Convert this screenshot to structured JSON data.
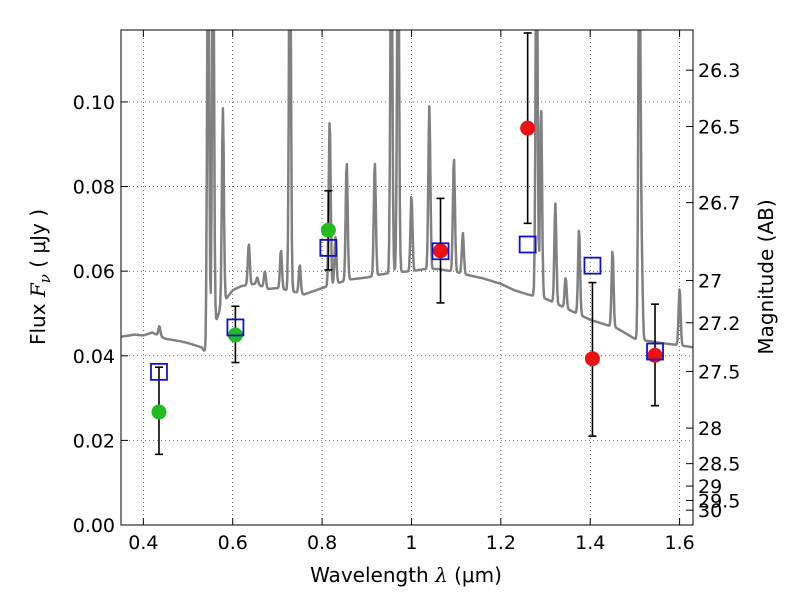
{
  "chart_data": {
    "type": "scatter",
    "xlabel": {
      "prefix": "Wavelength  ",
      "symbol": "λ",
      "unit": " (μm)"
    },
    "ylabel": {
      "prefix": "Flux  ",
      "symbol": "F",
      "subscript": "ν",
      "unit": " ( μJy )"
    },
    "y2label": "Magnitude (AB)",
    "xlim": [
      0.35,
      1.63
    ],
    "ylim": [
      0.0,
      0.117
    ],
    "grid": true,
    "x_ticks": [
      {
        "value": 0.4,
        "label": "0.4"
      },
      {
        "value": 0.6,
        "label": "0.6"
      },
      {
        "value": 0.8,
        "label": "0.8"
      },
      {
        "value": 1.0,
        "label": "1"
      },
      {
        "value": 1.2,
        "label": "1.2"
      },
      {
        "value": 1.4,
        "label": "1.4"
      },
      {
        "value": 1.6,
        "label": "1.6"
      }
    ],
    "y_ticks": [
      {
        "value": 0.0,
        "label": "0.00"
      },
      {
        "value": 0.02,
        "label": "0.02"
      },
      {
        "value": 0.04,
        "label": "0.04"
      },
      {
        "value": 0.06,
        "label": "0.06"
      },
      {
        "value": 0.08,
        "label": "0.08"
      },
      {
        "value": 0.1,
        "label": "0.10"
      }
    ],
    "y2_ticks": [
      {
        "label": "26.3",
        "flux": 0.1075
      },
      {
        "label": "26.5",
        "flux": 0.0942
      },
      {
        "label": "26.7",
        "flux": 0.0762
      },
      {
        "label": "27",
        "flux": 0.0578
      },
      {
        "label": "27.2",
        "flux": 0.0478
      },
      {
        "label": "27.5",
        "flux": 0.0363
      },
      {
        "label": "28",
        "flux": 0.0229
      },
      {
        "label": "28.5",
        "flux": 0.0145
      },
      {
        "label": "29",
        "flux": 0.0092
      },
      {
        "label": "29.5",
        "flux": 0.0058
      },
      {
        "label": "30",
        "flux": 0.0035
      }
    ],
    "series": [
      {
        "marker": "circle",
        "color": "#22bb22",
        "points": [
          {
            "x": 0.435,
            "y": 0.0267
          },
          {
            "x": 0.606,
            "y": 0.0449
          },
          {
            "x": 0.814,
            "y": 0.0697
          }
        ]
      },
      {
        "marker": "circle",
        "color": "#ee1111",
        "points": [
          {
            "x": 1.065,
            "y": 0.0648
          },
          {
            "x": 1.26,
            "y": 0.0938
          },
          {
            "x": 1.405,
            "y": 0.0393
          },
          {
            "x": 1.545,
            "y": 0.0401
          }
        ]
      },
      {
        "marker": "open-square",
        "color": "#1111cc",
        "points": [
          {
            "x": 0.435,
            "y": 0.0362
          },
          {
            "x": 0.606,
            "y": 0.0467
          },
          {
            "x": 0.814,
            "y": 0.0655
          },
          {
            "x": 1.065,
            "y": 0.0647
          },
          {
            "x": 1.26,
            "y": 0.0663
          },
          {
            "x": 1.405,
            "y": 0.0613
          },
          {
            "x": 1.545,
            "y": 0.041
          }
        ]
      }
    ],
    "error_bars": [
      {
        "x": 0.435,
        "low": 0.0167,
        "high": 0.0373
      },
      {
        "x": 0.606,
        "low": 0.0384,
        "high": 0.0517
      },
      {
        "x": 0.814,
        "low": 0.0603,
        "high": 0.079
      },
      {
        "x": 1.065,
        "low": 0.0525,
        "high": 0.0772
      },
      {
        "x": 1.26,
        "low": 0.0713,
        "high": 0.1163
      },
      {
        "x": 1.405,
        "low": 0.021,
        "high": 0.0573
      },
      {
        "x": 1.545,
        "low": 0.0282,
        "high": 0.0522
      }
    ],
    "spectrum": {
      "color": "#808080",
      "continuum": [
        [
          0.35,
          0.0445
        ],
        [
          0.38,
          0.045
        ],
        [
          0.4,
          0.0448
        ],
        [
          0.42,
          0.0455
        ],
        [
          0.45,
          0.044
        ],
        [
          0.48,
          0.0435
        ],
        [
          0.5,
          0.043
        ],
        [
          0.53,
          0.042
        ],
        [
          0.545,
          0.04
        ],
        [
          0.55,
          0.044
        ],
        [
          0.575,
          0.052
        ],
        [
          0.6,
          0.0555
        ],
        [
          0.62,
          0.0565
        ],
        [
          0.65,
          0.057
        ],
        [
          0.68,
          0.0558
        ],
        [
          0.7,
          0.056
        ],
        [
          0.73,
          0.0553
        ],
        [
          0.76,
          0.0545
        ],
        [
          0.8,
          0.056
        ],
        [
          0.83,
          0.057
        ],
        [
          0.86,
          0.058
        ],
        [
          0.9,
          0.0585
        ],
        [
          0.93,
          0.0592
        ],
        [
          0.96,
          0.0597
        ],
        [
          1.0,
          0.06
        ],
        [
          1.03,
          0.0605
        ],
        [
          1.06,
          0.0605
        ],
        [
          1.1,
          0.0598
        ],
        [
          1.13,
          0.059
        ],
        [
          1.16,
          0.0583
        ],
        [
          1.2,
          0.057
        ],
        [
          1.23,
          0.0555
        ],
        [
          1.26,
          0.0545
        ],
        [
          1.3,
          0.0535
        ],
        [
          1.33,
          0.052
        ],
        [
          1.36,
          0.0505
        ],
        [
          1.4,
          0.0485
        ],
        [
          1.43,
          0.0475
        ],
        [
          1.46,
          0.0465
        ],
        [
          1.5,
          0.044
        ],
        [
          1.53,
          0.0435
        ],
        [
          1.56,
          0.043
        ],
        [
          1.6,
          0.0425
        ],
        [
          1.63,
          0.042
        ]
      ],
      "lines": [
        {
          "x": 0.436,
          "peak": 0.047
        },
        {
          "x": 0.545,
          "peak": 0.15
        },
        {
          "x": 0.556,
          "peak": 0.15
        },
        {
          "x": 0.578,
          "peak": 0.0985
        },
        {
          "x": 0.636,
          "peak": 0.0665
        },
        {
          "x": 0.655,
          "peak": 0.0585
        },
        {
          "x": 0.672,
          "peak": 0.06
        },
        {
          "x": 0.708,
          "peak": 0.065
        },
        {
          "x": 0.728,
          "peak": 0.15
        },
        {
          "x": 0.75,
          "peak": 0.0615
        },
        {
          "x": 0.817,
          "peak": 0.096
        },
        {
          "x": 0.83,
          "peak": 0.068
        },
        {
          "x": 0.855,
          "peak": 0.086
        },
        {
          "x": 0.918,
          "peak": 0.086
        },
        {
          "x": 0.955,
          "peak": 0.15
        },
        {
          "x": 0.97,
          "peak": 0.15
        },
        {
          "x": 1.0,
          "peak": 0.078
        },
        {
          "x": 1.04,
          "peak": 0.099
        },
        {
          "x": 1.095,
          "peak": 0.087
        },
        {
          "x": 1.115,
          "peak": 0.069
        },
        {
          "x": 1.28,
          "peak": 0.15
        },
        {
          "x": 1.29,
          "peak": 0.099
        },
        {
          "x": 1.322,
          "peak": 0.076
        },
        {
          "x": 1.345,
          "peak": 0.0585
        },
        {
          "x": 1.375,
          "peak": 0.07
        },
        {
          "x": 1.45,
          "peak": 0.065
        },
        {
          "x": 1.51,
          "peak": 0.15
        },
        {
          "x": 1.515,
          "peak": 0.064
        },
        {
          "x": 1.6,
          "peak": 0.056
        }
      ]
    }
  }
}
